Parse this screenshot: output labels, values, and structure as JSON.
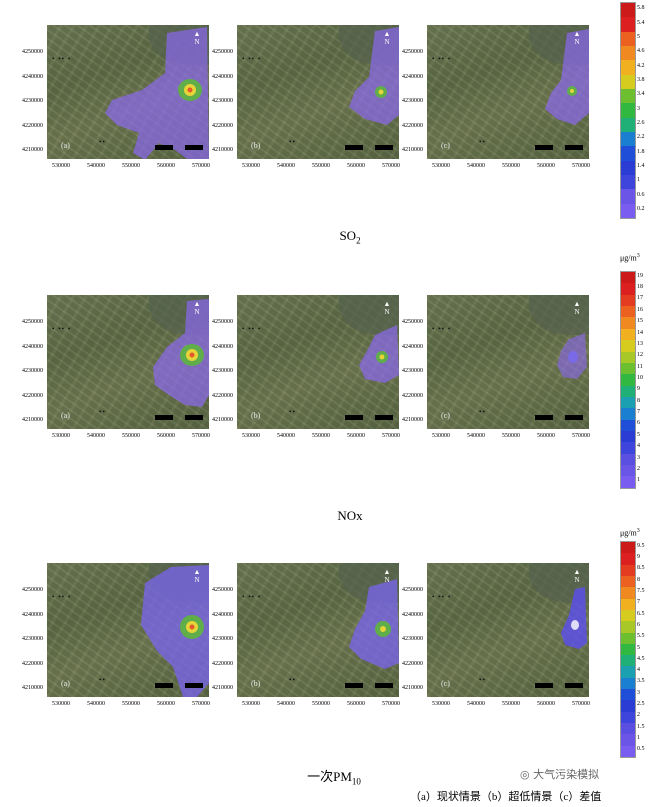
{
  "rows": [
    {
      "caption_main": "SO",
      "caption_sub": "2",
      "pollutant": "SO2",
      "unit": "μg/m",
      "unit_sup": "3",
      "legend_labels": [
        "5.8",
        "5.4",
        "5",
        "4.6",
        "4.2",
        "3.8",
        "3.4",
        "3",
        "2.6",
        "2.2",
        "1.8",
        "1.4",
        "1",
        "0.6",
        "0.2"
      ]
    },
    {
      "caption_main": "NOx",
      "caption_sub": "",
      "pollutant": "NOx",
      "unit": "μg/m",
      "unit_sup": "3",
      "legend_labels": [
        "19",
        "18",
        "17",
        "16",
        "15",
        "14",
        "13",
        "12",
        "11",
        "10",
        "9",
        "8",
        "7",
        "6",
        "5",
        "4",
        "3",
        "2",
        "1"
      ]
    },
    {
      "caption_main": "一次PM",
      "caption_sub": "10",
      "pollutant": "PM10",
      "unit": "μg/m",
      "unit_sup": "3",
      "legend_labels": [
        "9.5",
        "9",
        "8.5",
        "8",
        "7.5",
        "7",
        "6.5",
        "6",
        "5.5",
        "5",
        "4.5",
        "4",
        "3.5",
        "3",
        "2.5",
        "2",
        "1.5",
        "1",
        "0.5"
      ]
    }
  ],
  "panel_labels": [
    "(a)",
    "(b)",
    "(c)"
  ],
  "y_ticks": [
    "4250000",
    "4240000",
    "4230000",
    "4220000",
    "4210000"
  ],
  "x_ticks": [
    "530000",
    "540000",
    "550000",
    "560000",
    "570000"
  ],
  "north_letter": "N",
  "footnote": "（a）现状情景（b）超低情景（c）差值",
  "watermark": "大气污染模拟"
}
